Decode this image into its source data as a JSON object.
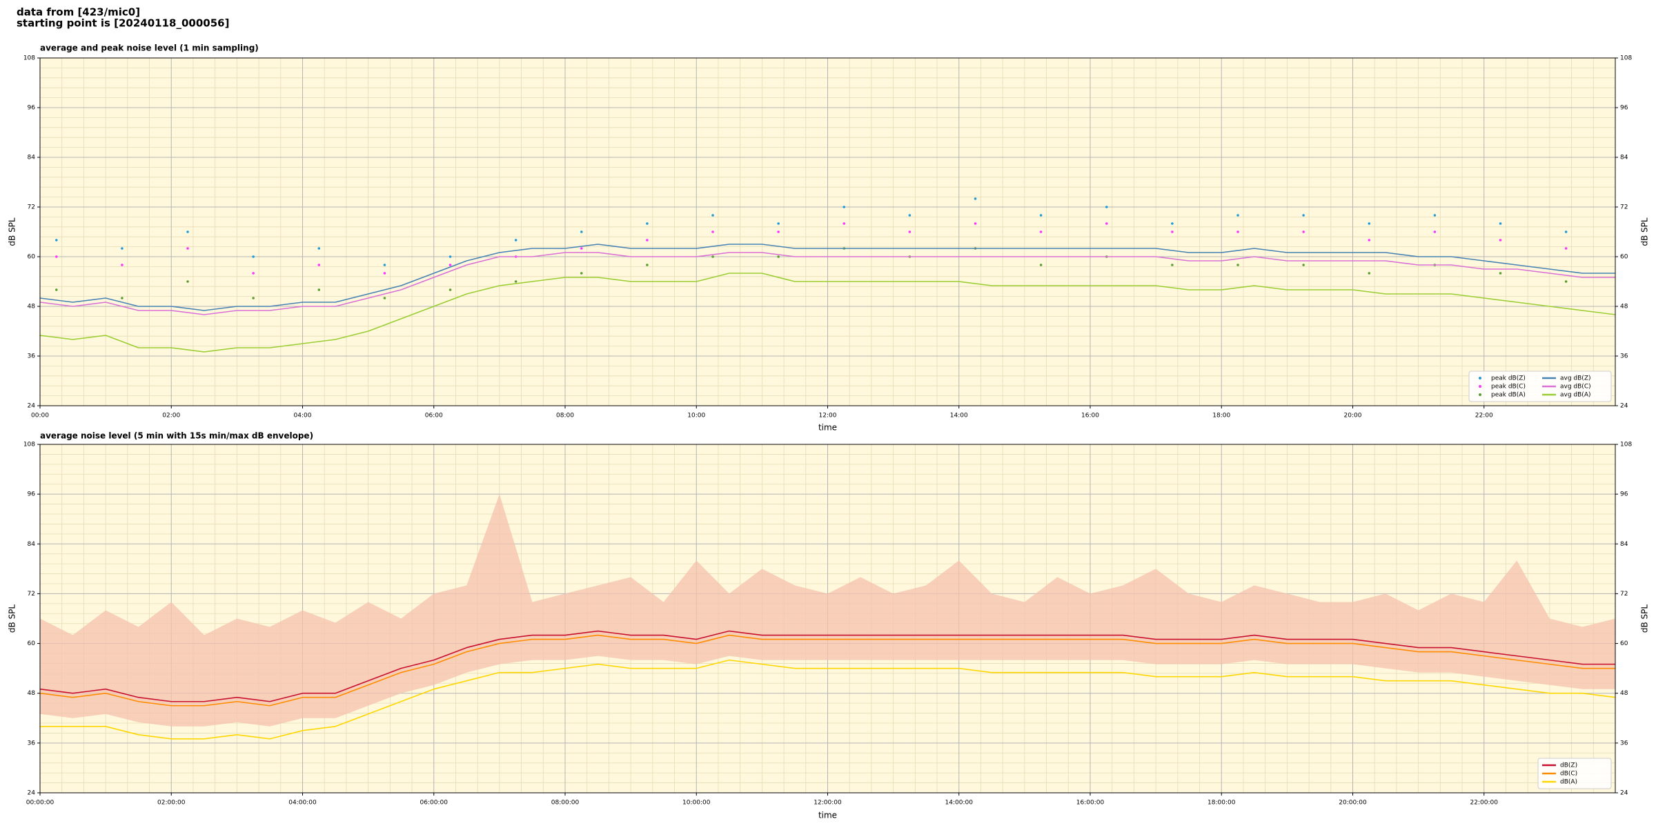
{
  "header": {
    "lines": [
      "data from [423/mic0]",
      "starting point is [20240118_000056]"
    ]
  },
  "chart_data": [
    {
      "type": "line",
      "title": "average and peak noise level (1 min sampling)",
      "xlabel": "time",
      "ylabel": "dB SPL",
      "xlim": [
        0,
        24
      ],
      "xticks": [
        {
          "value": 0,
          "label": "00:00"
        },
        {
          "value": 2,
          "label": "02:00"
        },
        {
          "value": 4,
          "label": "04:00"
        },
        {
          "value": 6,
          "label": "06:00"
        },
        {
          "value": 8,
          "label": "08:00"
        },
        {
          "value": 10,
          "label": "10:00"
        },
        {
          "value": 12,
          "label": "12:00"
        },
        {
          "value": 14,
          "label": "14:00"
        },
        {
          "value": 16,
          "label": "16:00"
        },
        {
          "value": 18,
          "label": "18:00"
        },
        {
          "value": 20,
          "label": "20:00"
        },
        {
          "value": 22,
          "label": "22:00"
        }
      ],
      "ylim": [
        24,
        108
      ],
      "yticks": [
        24,
        36,
        48,
        60,
        72,
        84,
        96,
        108
      ],
      "grid": true,
      "minor_grid": true,
      "legend": "lower right",
      "background": "#fff8dc",
      "x": [
        0,
        0.5,
        1,
        1.5,
        2,
        2.5,
        3,
        3.5,
        4,
        4.5,
        5,
        5.5,
        6,
        6.5,
        7,
        7.5,
        8,
        8.5,
        9,
        9.5,
        10,
        10.5,
        11,
        11.5,
        12,
        12.5,
        13,
        13.5,
        14,
        14.5,
        15,
        15.5,
        16,
        16.5,
        17,
        17.5,
        18,
        18.5,
        19,
        19.5,
        20,
        20.5,
        21,
        21.5,
        22,
        22.5,
        23,
        23.5,
        24
      ],
      "series": [
        {
          "name": "peak dB(Z)",
          "type": "scatter",
          "color": "#1f9bd7",
          "x": [
            0.25,
            1.25,
            2.25,
            3.25,
            4.25,
            5.25,
            6.25,
            7.25,
            8.25,
            9.25,
            10.25,
            11.25,
            12.25,
            13.25,
            14.25,
            15.25,
            16.25,
            17.25,
            18.25,
            19.25,
            20.25,
            21.25,
            22.25,
            23.25
          ],
          "values": [
            64,
            62,
            66,
            60,
            62,
            58,
            60,
            64,
            66,
            68,
            70,
            68,
            72,
            70,
            74,
            70,
            72,
            68,
            70,
            70,
            68,
            70,
            68,
            66
          ]
        },
        {
          "name": "peak dB(C)",
          "type": "scatter",
          "color": "#ff33ff",
          "x": [
            0.25,
            1.25,
            2.25,
            3.25,
            4.25,
            5.25,
            6.25,
            7.25,
            8.25,
            9.25,
            10.25,
            11.25,
            12.25,
            13.25,
            14.25,
            15.25,
            16.25,
            17.25,
            18.25,
            19.25,
            20.25,
            21.25,
            22.25,
            23.25
          ],
          "values": [
            60,
            58,
            62,
            56,
            58,
            56,
            58,
            60,
            62,
            64,
            66,
            66,
            68,
            66,
            68,
            66,
            68,
            66,
            66,
            66,
            64,
            66,
            64,
            62
          ]
        },
        {
          "name": "peak dB(A)",
          "type": "scatter",
          "color": "#5a9e2f",
          "x": [
            0.25,
            1.25,
            2.25,
            3.25,
            4.25,
            5.25,
            6.25,
            7.25,
            8.25,
            9.25,
            10.25,
            11.25,
            12.25,
            13.25,
            14.25,
            15.25,
            16.25,
            17.25,
            18.25,
            19.25,
            20.25,
            21.25,
            22.25,
            23.25
          ],
          "values": [
            52,
            50,
            54,
            50,
            52,
            50,
            52,
            54,
            56,
            58,
            60,
            60,
            62,
            60,
            62,
            58,
            60,
            58,
            58,
            58,
            56,
            58,
            56,
            54
          ]
        },
        {
          "name": "avg dB(Z)",
          "type": "line",
          "color": "#4682b4",
          "values": [
            50,
            49,
            50,
            48,
            48,
            47,
            48,
            48,
            49,
            49,
            51,
            53,
            56,
            59,
            61,
            62,
            62,
            63,
            62,
            62,
            62,
            63,
            63,
            62,
            62,
            62,
            62,
            62,
            62,
            62,
            62,
            62,
            62,
            62,
            62,
            61,
            61,
            62,
            61,
            61,
            61,
            61,
            60,
            60,
            59,
            58,
            57,
            56,
            56
          ]
        },
        {
          "name": "avg dB(C)",
          "type": "line",
          "color": "#da70d6",
          "values": [
            49,
            48,
            49,
            47,
            47,
            46,
            47,
            47,
            48,
            48,
            50,
            52,
            55,
            58,
            60,
            60,
            61,
            61,
            60,
            60,
            60,
            61,
            61,
            60,
            60,
            60,
            60,
            60,
            60,
            60,
            60,
            60,
            60,
            60,
            60,
            59,
            59,
            60,
            59,
            59,
            59,
            59,
            58,
            58,
            57,
            57,
            56,
            55,
            55
          ]
        },
        {
          "name": "avg dB(A)",
          "type": "line",
          "color": "#9acd32",
          "values": [
            41,
            40,
            41,
            38,
            38,
            37,
            38,
            38,
            39,
            40,
            42,
            45,
            48,
            51,
            53,
            54,
            55,
            55,
            54,
            54,
            54,
            56,
            56,
            54,
            54,
            54,
            54,
            54,
            54,
            53,
            53,
            53,
            53,
            53,
            53,
            52,
            52,
            53,
            52,
            52,
            52,
            51,
            51,
            51,
            50,
            49,
            48,
            47,
            46
          ]
        }
      ]
    },
    {
      "type": "line",
      "title": "average noise level (5 min with 15s min/max dB envelope)",
      "xlabel": "time",
      "ylabel": "dB SPL",
      "xlim": [
        0,
        24
      ],
      "xticks": [
        {
          "value": 0,
          "label": "00:00:00"
        },
        {
          "value": 2,
          "label": "02:00:00"
        },
        {
          "value": 4,
          "label": "04:00:00"
        },
        {
          "value": 6,
          "label": "06:00:00"
        },
        {
          "value": 8,
          "label": "08:00:00"
        },
        {
          "value": 10,
          "label": "10:00:00"
        },
        {
          "value": 12,
          "label": "12:00:00"
        },
        {
          "value": 14,
          "label": "14:00:00"
        },
        {
          "value": 16,
          "label": "16:00:00"
        },
        {
          "value": 18,
          "label": "18:00:00"
        },
        {
          "value": 20,
          "label": "20:00:00"
        },
        {
          "value": 22,
          "label": "22:00:00"
        }
      ],
      "ylim": [
        24,
        108
      ],
      "yticks": [
        24,
        36,
        48,
        60,
        72,
        84,
        96,
        108
      ],
      "grid": true,
      "minor_grid": true,
      "legend": "lower right",
      "background": "#fff8dc",
      "x": [
        0,
        0.5,
        1,
        1.5,
        2,
        2.5,
        3,
        3.5,
        4,
        4.5,
        5,
        5.5,
        6,
        6.5,
        7,
        7.5,
        8,
        8.5,
        9,
        9.5,
        10,
        10.5,
        11,
        11.5,
        12,
        12.5,
        13,
        13.5,
        14,
        14.5,
        15,
        15.5,
        16,
        16.5,
        17,
        17.5,
        18,
        18.5,
        19,
        19.5,
        20,
        20.5,
        21,
        21.5,
        22,
        22.5,
        23,
        23.5,
        24
      ],
      "envelope": {
        "color": "#f6c2ae",
        "lower": [
          43,
          42,
          43,
          41,
          40,
          40,
          41,
          40,
          42,
          42,
          45,
          48,
          50,
          53,
          55,
          56,
          56,
          57,
          56,
          56,
          55,
          57,
          56,
          56,
          56,
          56,
          56,
          56,
          56,
          56,
          56,
          56,
          56,
          56,
          55,
          55,
          55,
          56,
          55,
          55,
          55,
          54,
          53,
          53,
          52,
          51,
          50,
          49,
          49
        ],
        "upper": [
          66,
          62,
          68,
          64,
          70,
          62,
          66,
          64,
          68,
          65,
          70,
          66,
          72,
          74,
          96,
          70,
          72,
          74,
          76,
          70,
          80,
          72,
          78,
          74,
          72,
          76,
          72,
          74,
          80,
          72,
          70,
          76,
          72,
          74,
          78,
          72,
          70,
          74,
          72,
          70,
          70,
          72,
          68,
          72,
          70,
          80,
          66,
          64,
          66
        ]
      },
      "series": [
        {
          "name": "dB(Z)",
          "type": "line",
          "color": "#c8102e",
          "values": [
            49,
            48,
            49,
            47,
            46,
            46,
            47,
            46,
            48,
            48,
            51,
            54,
            56,
            59,
            61,
            62,
            62,
            63,
            62,
            62,
            61,
            63,
            62,
            62,
            62,
            62,
            62,
            62,
            62,
            62,
            62,
            62,
            62,
            62,
            61,
            61,
            61,
            62,
            61,
            61,
            61,
            60,
            59,
            59,
            58,
            57,
            56,
            55,
            55
          ]
        },
        {
          "name": "dB(C)",
          "type": "line",
          "color": "#ff8c00",
          "values": [
            48,
            47,
            48,
            46,
            45,
            45,
            46,
            45,
            47,
            47,
            50,
            53,
            55,
            58,
            60,
            61,
            61,
            62,
            61,
            61,
            60,
            62,
            61,
            61,
            61,
            61,
            61,
            61,
            61,
            61,
            61,
            61,
            61,
            61,
            60,
            60,
            60,
            61,
            60,
            60,
            60,
            59,
            58,
            58,
            57,
            56,
            55,
            54,
            54
          ]
        },
        {
          "name": "dB(A)",
          "type": "line",
          "color": "#ffd700",
          "values": [
            40,
            40,
            40,
            38,
            37,
            37,
            38,
            37,
            39,
            40,
            43,
            46,
            49,
            51,
            53,
            53,
            54,
            55,
            54,
            54,
            54,
            56,
            55,
            54,
            54,
            54,
            54,
            54,
            54,
            53,
            53,
            53,
            53,
            53,
            52,
            52,
            52,
            53,
            52,
            52,
            52,
            51,
            51,
            51,
            50,
            49,
            48,
            48,
            47
          ]
        }
      ]
    }
  ]
}
